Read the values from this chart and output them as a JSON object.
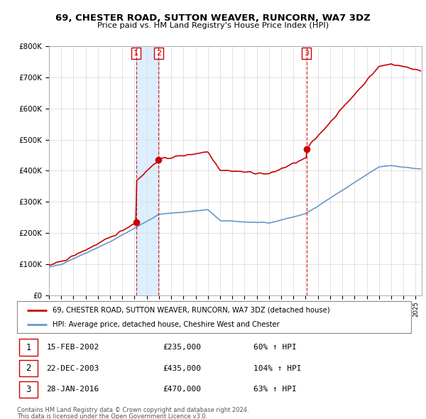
{
  "title": "69, CHESTER ROAD, SUTTON WEAVER, RUNCORN, WA7 3DZ",
  "subtitle": "Price paid vs. HM Land Registry's House Price Index (HPI)",
  "legend_red": "69, CHESTER ROAD, SUTTON WEAVER, RUNCORN, WA7 3DZ (detached house)",
  "legend_blue": "HPI: Average price, detached house, Cheshire West and Chester",
  "footnote1": "Contains HM Land Registry data © Crown copyright and database right 2024.",
  "footnote2": "This data is licensed under the Open Government Licence v3.0.",
  "sales": [
    {
      "label": "1",
      "date": "15-FEB-2002",
      "price": "£235,000",
      "hpi": "60% ↑ HPI",
      "year": 2002.12
    },
    {
      "label": "2",
      "date": "22-DEC-2003",
      "price": "£435,000",
      "hpi": "104% ↑ HPI",
      "year": 2003.97
    },
    {
      "label": "3",
      "date": "28-JAN-2016",
      "price": "£470,000",
      "hpi": "63% ↑ HPI",
      "year": 2016.07
    }
  ],
  "sale_values": [
    235000,
    435000,
    470000
  ],
  "sale_years": [
    2002.12,
    2003.97,
    2016.07
  ],
  "ylim": [
    0,
    800000
  ],
  "xlim_start": 1995.0,
  "xlim_end": 2025.5,
  "red_color": "#cc0000",
  "blue_color": "#6699cc",
  "shade_color": "#ddeeff",
  "bg_color": "#ffffff",
  "grid_color": "#dddddd"
}
